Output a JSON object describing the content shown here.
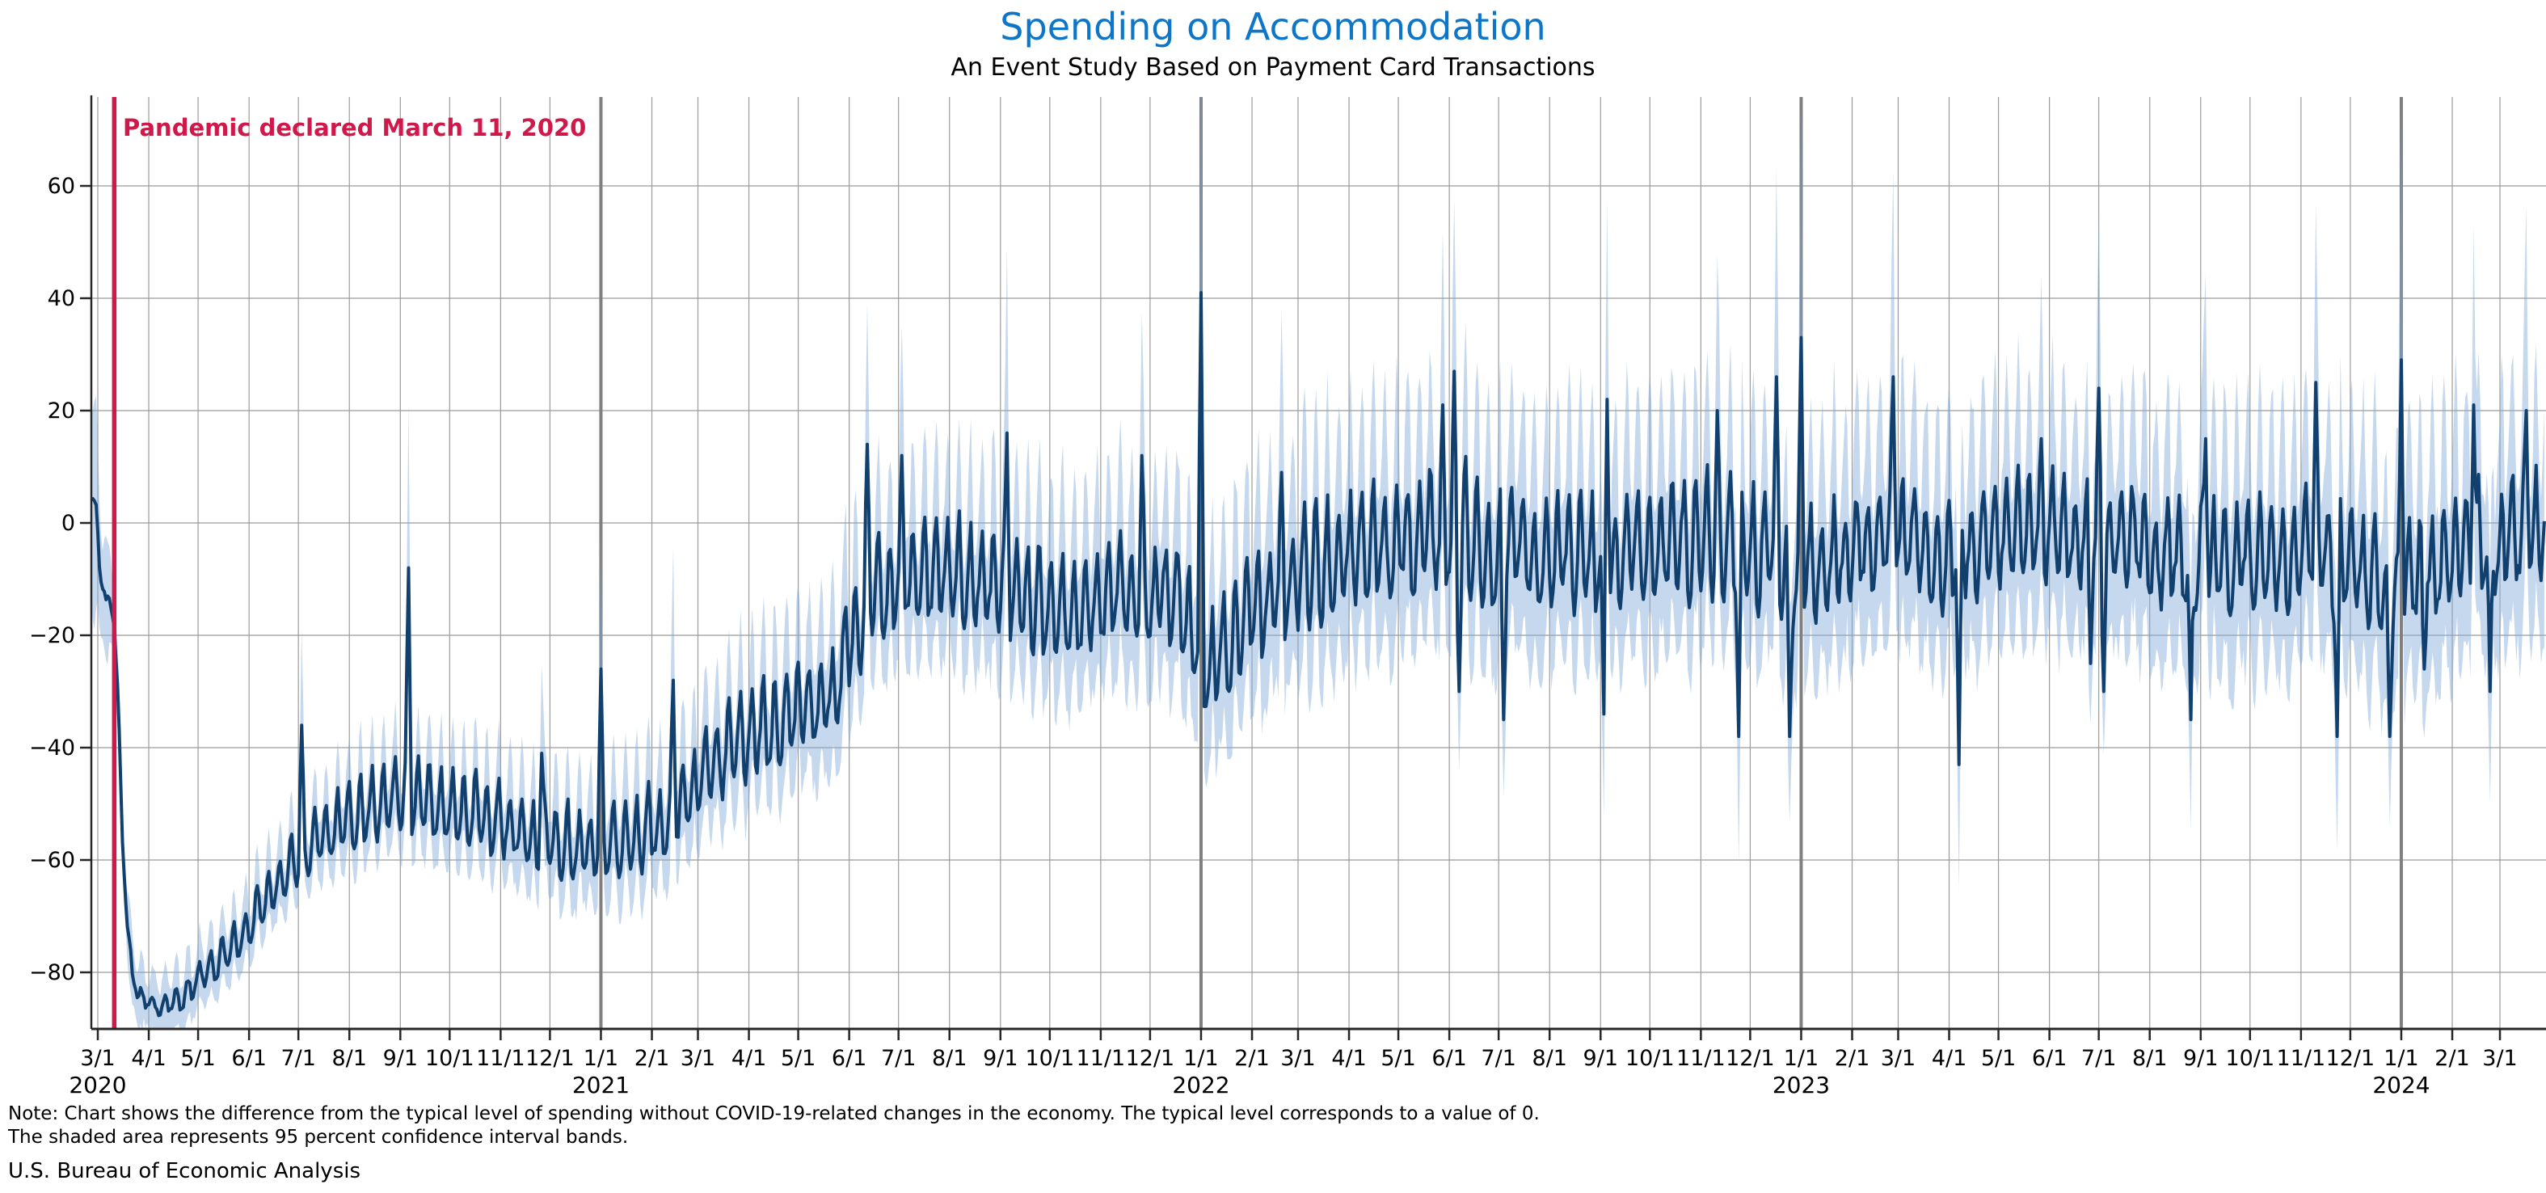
{
  "chart_data": {
    "type": "line",
    "title": "Spending on Accommodation",
    "subtitle": "An Event Study Based on Payment Card Transactions",
    "note_lines": [
      "Note: Chart shows the difference from the typical level of spending without COVID-19-related changes in the economy. The typical level corresponds to a value of 0.",
      "The shaded area represents 95 percent confidence interval bands."
    ],
    "source": "U.S. Bureau of Economic Analysis",
    "annotation": {
      "text": "Pandemic declared March 11, 2020",
      "date": "2020-03-11",
      "color": "#d0194a"
    },
    "colors": {
      "title": "#0d76c9",
      "line": "#11406e",
      "band": "#7fa8d9",
      "band_opacity": 0.45,
      "annotation_line": "#d0194a",
      "grid": "#9b9b9b",
      "year_line": "#7f7f7f",
      "spine": "#262626",
      "text": "#000000"
    },
    "grid": true,
    "legend": "none",
    "ylim": [
      -91,
      76
    ],
    "y_axis": {
      "ticks": [
        {
          "label": "−80",
          "value": -80
        },
        {
          "label": "−60",
          "value": -60
        },
        {
          "label": "−40",
          "value": -40
        },
        {
          "label": "−20",
          "value": -20
        },
        {
          "label": "0",
          "value": 0
        },
        {
          "label": "20",
          "value": 20
        },
        {
          "label": "40",
          "value": 40
        },
        {
          "label": "60",
          "value": 60
        }
      ]
    },
    "x_axis": {
      "start": "2020-02-26",
      "end": "2024-03-28",
      "ticks": [
        {
          "label": "3/1",
          "date": "2020-03-01"
        },
        {
          "label": "4/1",
          "date": "2020-04-01"
        },
        {
          "label": "5/1",
          "date": "2020-05-01"
        },
        {
          "label": "6/1",
          "date": "2020-06-01"
        },
        {
          "label": "7/1",
          "date": "2020-07-01"
        },
        {
          "label": "8/1",
          "date": "2020-08-01"
        },
        {
          "label": "9/1",
          "date": "2020-09-01"
        },
        {
          "label": "10/1",
          "date": "2020-10-01"
        },
        {
          "label": "11/1",
          "date": "2020-11-01"
        },
        {
          "label": "12/1",
          "date": "2020-12-01"
        },
        {
          "label": "1/1",
          "date": "2021-01-01"
        },
        {
          "label": "2/1",
          "date": "2021-02-01"
        },
        {
          "label": "3/1",
          "date": "2021-03-01"
        },
        {
          "label": "4/1",
          "date": "2021-04-01"
        },
        {
          "label": "5/1",
          "date": "2021-05-01"
        },
        {
          "label": "6/1",
          "date": "2021-06-01"
        },
        {
          "label": "7/1",
          "date": "2021-07-01"
        },
        {
          "label": "8/1",
          "date": "2021-08-01"
        },
        {
          "label": "9/1",
          "date": "2021-09-01"
        },
        {
          "label": "10/1",
          "date": "2021-10-01"
        },
        {
          "label": "11/1",
          "date": "2021-11-01"
        },
        {
          "label": "12/1",
          "date": "2021-12-01"
        },
        {
          "label": "1/1",
          "date": "2022-01-01"
        },
        {
          "label": "2/1",
          "date": "2022-02-01"
        },
        {
          "label": "3/1",
          "date": "2022-03-01"
        },
        {
          "label": "4/1",
          "date": "2022-04-01"
        },
        {
          "label": "5/1",
          "date": "2022-05-01"
        },
        {
          "label": "6/1",
          "date": "2022-06-01"
        },
        {
          "label": "7/1",
          "date": "2022-07-01"
        },
        {
          "label": "8/1",
          "date": "2022-08-01"
        },
        {
          "label": "9/1",
          "date": "2022-09-01"
        },
        {
          "label": "10/1",
          "date": "2022-10-01"
        },
        {
          "label": "11/1",
          "date": "2022-11-01"
        },
        {
          "label": "12/1",
          "date": "2022-12-01"
        },
        {
          "label": "1/1",
          "date": "2023-01-01"
        },
        {
          "label": "2/1",
          "date": "2023-02-01"
        },
        {
          "label": "3/1",
          "date": "2023-03-01"
        },
        {
          "label": "4/1",
          "date": "2023-04-01"
        },
        {
          "label": "5/1",
          "date": "2023-05-01"
        },
        {
          "label": "6/1",
          "date": "2023-06-01"
        },
        {
          "label": "7/1",
          "date": "2023-07-01"
        },
        {
          "label": "8/1",
          "date": "2023-08-01"
        },
        {
          "label": "9/1",
          "date": "2023-09-01"
        },
        {
          "label": "10/1",
          "date": "2023-10-01"
        },
        {
          "label": "11/1",
          "date": "2023-11-01"
        },
        {
          "label": "12/1",
          "date": "2023-12-01"
        },
        {
          "label": "1/1",
          "date": "2024-01-01"
        },
        {
          "label": "2/1",
          "date": "2024-02-01"
        },
        {
          "label": "3/1",
          "date": "2024-03-01"
        }
      ],
      "year_labels": [
        {
          "label": "2020",
          "date": "2020-03-01"
        },
        {
          "label": "2021",
          "date": "2021-01-01"
        },
        {
          "label": "2022",
          "date": "2022-01-01"
        },
        {
          "label": "2023",
          "date": "2023-01-01"
        },
        {
          "label": "2024",
          "date": "2024-01-01"
        }
      ],
      "year_lines": [
        "2021-01-01",
        "2022-01-01",
        "2023-01-01",
        "2024-01-01"
      ]
    },
    "series_name": "Difference from typical level of spending",
    "band_name": "95 percent confidence interval bands",
    "seed": 20200311,
    "weekly_pattern": [
      0.15,
      -0.85,
      -1.0,
      -0.7,
      -0.1,
      0.7,
      1.0
    ],
    "band_width_pattern": [
      1,
      -0.2,
      -0.6,
      -0.5,
      0,
      0.7,
      1
    ],
    "trend_anchors": [
      [
        "2020-02-26",
        6
      ],
      [
        "2020-02-29",
        2
      ],
      [
        "2020-03-03",
        -9
      ],
      [
        "2020-03-06",
        -15
      ],
      [
        "2020-03-09",
        -14
      ],
      [
        "2020-03-11",
        -18
      ],
      [
        "2020-03-13",
        -30
      ],
      [
        "2020-03-16",
        -55
      ],
      [
        "2020-03-19",
        -72
      ],
      [
        "2020-03-22",
        -80
      ],
      [
        "2020-03-26",
        -84
      ],
      [
        "2020-04-02",
        -85.5
      ],
      [
        "2020-04-12",
        -86
      ],
      [
        "2020-04-22",
        -84
      ],
      [
        "2020-05-02",
        -81
      ],
      [
        "2020-05-12",
        -78
      ],
      [
        "2020-05-22",
        -75
      ],
      [
        "2020-06-01",
        -70.5
      ],
      [
        "2020-06-11",
        -66
      ],
      [
        "2020-06-21",
        -62.5
      ],
      [
        "2020-07-01",
        -59
      ],
      [
        "2020-07-11",
        -56
      ],
      [
        "2020-07-21",
        -54
      ],
      [
        "2020-08-01",
        -51.5
      ],
      [
        "2020-08-15",
        -50
      ],
      [
        "2020-09-01",
        -48
      ],
      [
        "2020-09-15",
        -48.5
      ],
      [
        "2020-10-01",
        -50
      ],
      [
        "2020-10-15",
        -51
      ],
      [
        "2020-11-01",
        -53
      ],
      [
        "2020-11-15",
        -54.5
      ],
      [
        "2020-12-01",
        -56
      ],
      [
        "2020-12-15",
        -57
      ],
      [
        "2020-12-28",
        -57
      ],
      [
        "2021-01-05",
        -56.5
      ],
      [
        "2021-01-20",
        -55.5
      ],
      [
        "2021-02-01",
        -53.5
      ],
      [
        "2021-02-14",
        -51
      ],
      [
        "2021-02-25",
        -48
      ],
      [
        "2021-03-10",
        -43
      ],
      [
        "2021-03-25",
        -38.5
      ],
      [
        "2021-04-10",
        -35
      ],
      [
        "2021-04-25",
        -33
      ],
      [
        "2021-05-10",
        -31.5
      ],
      [
        "2021-05-25",
        -29.5
      ],
      [
        "2021-06-03",
        -21
      ],
      [
        "2021-06-12",
        -13
      ],
      [
        "2021-06-25",
        -11
      ],
      [
        "2021-07-10",
        -8
      ],
      [
        "2021-07-25",
        -9
      ],
      [
        "2021-08-10",
        -8
      ],
      [
        "2021-08-25",
        -10
      ],
      [
        "2021-09-10",
        -12
      ],
      [
        "2021-09-25",
        -13.5
      ],
      [
        "2021-10-10",
        -14.5
      ],
      [
        "2021-10-25",
        -14
      ],
      [
        "2021-11-10",
        -12.5
      ],
      [
        "2021-11-25",
        -13
      ],
      [
        "2021-12-10",
        -12
      ],
      [
        "2021-12-20",
        -14
      ],
      [
        "2021-12-29",
        -23
      ],
      [
        "2022-01-08",
        -23
      ],
      [
        "2022-01-20",
        -21
      ],
      [
        "2022-02-01",
        -16
      ],
      [
        "2022-02-15",
        -12
      ],
      [
        "2022-03-01",
        -9
      ],
      [
        "2022-03-15",
        -6.5
      ],
      [
        "2022-04-01",
        -4
      ],
      [
        "2022-04-15",
        -2.5
      ],
      [
        "2022-05-01",
        -3
      ],
      [
        "2022-05-15",
        -2
      ],
      [
        "2022-06-01",
        0
      ],
      [
        "2022-06-15",
        -2.5
      ],
      [
        "2022-07-01",
        -4
      ],
      [
        "2022-07-15",
        -3
      ],
      [
        "2022-08-01",
        -4
      ],
      [
        "2022-08-15",
        -5
      ],
      [
        "2022-09-01",
        -5.5
      ],
      [
        "2022-09-15",
        -4.5
      ],
      [
        "2022-10-01",
        -2.5
      ],
      [
        "2022-10-15",
        -2
      ],
      [
        "2022-11-01",
        -2
      ],
      [
        "2022-11-15",
        -3
      ],
      [
        "2022-12-01",
        -3.5
      ],
      [
        "2022-12-15",
        -3
      ],
      [
        "2022-12-27",
        -9
      ],
      [
        "2023-01-08",
        -5.5
      ],
      [
        "2023-01-20",
        -5
      ],
      [
        "2023-02-01",
        -4
      ],
      [
        "2023-02-15",
        -2
      ],
      [
        "2023-03-01",
        -2.5
      ],
      [
        "2023-03-15",
        -3
      ],
      [
        "2023-04-01",
        -5
      ],
      [
        "2023-04-15",
        -4
      ],
      [
        "2023-05-01",
        -1.5
      ],
      [
        "2023-05-15",
        -0.5
      ],
      [
        "2023-06-01",
        -0.5
      ],
      [
        "2023-06-15",
        -1.5
      ],
      [
        "2023-07-01",
        -1
      ],
      [
        "2023-07-15",
        -2.5
      ],
      [
        "2023-08-01",
        -3.5
      ],
      [
        "2023-08-15",
        -5
      ],
      [
        "2023-08-27",
        -7
      ],
      [
        "2023-09-10",
        -3.5
      ],
      [
        "2023-09-25",
        -5
      ],
      [
        "2023-10-10",
        -4.5
      ],
      [
        "2023-10-25",
        -5.5
      ],
      [
        "2023-11-08",
        -3.5
      ],
      [
        "2023-11-20",
        -6
      ],
      [
        "2023-12-01",
        -6
      ],
      [
        "2023-12-15",
        -8
      ],
      [
        "2023-12-26",
        -13
      ],
      [
        "2024-01-08",
        -9
      ],
      [
        "2024-01-20",
        -7.5
      ],
      [
        "2024-02-01",
        -4.5
      ],
      [
        "2024-02-14",
        -1.5
      ],
      [
        "2024-02-25",
        -4
      ],
      [
        "2024-03-08",
        -2
      ],
      [
        "2024-03-18",
        -1
      ],
      [
        "2024-03-28",
        2
      ]
    ],
    "amplitude_anchors": [
      [
        "2020-02-26",
        2
      ],
      [
        "2020-03-12",
        1.5
      ],
      [
        "2020-04-01",
        1.3
      ],
      [
        "2020-05-01",
        2.2
      ],
      [
        "2020-06-01",
        3.2
      ],
      [
        "2020-07-01",
        4.5
      ],
      [
        "2020-08-01",
        6
      ],
      [
        "2020-10-01",
        6.5
      ],
      [
        "2020-12-01",
        5.5
      ],
      [
        "2021-02-01",
        6
      ],
      [
        "2021-04-01",
        7
      ],
      [
        "2021-06-01",
        7.5
      ],
      [
        "2021-08-01",
        8
      ],
      [
        "2021-10-01",
        8.5
      ],
      [
        "2021-12-01",
        7.5
      ],
      [
        "2022-01-15",
        8.5
      ],
      [
        "2022-03-01",
        9
      ],
      [
        "2022-06-01",
        9.5
      ],
      [
        "2022-09-01",
        9
      ],
      [
        "2022-12-01",
        9
      ],
      [
        "2023-03-01",
        8.5
      ],
      [
        "2023-06-01",
        8
      ],
      [
        "2023-09-01",
        8.5
      ],
      [
        "2023-12-01",
        8.5
      ],
      [
        "2024-03-28",
        8
      ]
    ],
    "ci_anchors": [
      [
        "2020-02-26",
        18
      ],
      [
        "2020-03-05",
        9
      ],
      [
        "2020-03-15",
        6
      ],
      [
        "2020-04-01",
        4.5
      ],
      [
        "2020-06-01",
        5
      ],
      [
        "2020-08-01",
        6.5
      ],
      [
        "2020-10-01",
        7.5
      ],
      [
        "2020-12-01",
        8
      ],
      [
        "2021-02-01",
        9
      ],
      [
        "2021-04-01",
        10
      ],
      [
        "2021-06-01",
        12
      ],
      [
        "2021-09-01",
        13
      ],
      [
        "2021-12-01",
        13.5
      ],
      [
        "2022-02-01",
        15
      ],
      [
        "2022-06-01",
        16
      ],
      [
        "2022-10-01",
        16
      ],
      [
        "2023-02-01",
        16.5
      ],
      [
        "2023-06-01",
        16
      ],
      [
        "2023-10-01",
        17
      ],
      [
        "2024-01-01",
        17.5
      ],
      [
        "2024-03-28",
        17
      ]
    ],
    "noise_anchors": [
      [
        "2020-02-26",
        1.0
      ],
      [
        "2020-04-01",
        0.8
      ],
      [
        "2020-08-01",
        1.3
      ],
      [
        "2021-01-01",
        1.8
      ],
      [
        "2021-06-01",
        2.2
      ],
      [
        "2022-01-01",
        2.8
      ],
      [
        "2023-01-01",
        3.0
      ],
      [
        "2024-03-28",
        3.0
      ]
    ],
    "events": [
      [
        "2020-07-03",
        -36
      ],
      [
        "2020-09-06",
        -8
      ],
      [
        "2020-11-26",
        -41
      ],
      [
        "2021-01-01",
        -26
      ],
      [
        "2021-02-14",
        -28
      ],
      [
        "2021-05-30",
        -15
      ],
      [
        "2021-06-12",
        14
      ],
      [
        "2021-07-03",
        12
      ],
      [
        "2021-09-05",
        16
      ],
      [
        "2021-11-26",
        12
      ],
      [
        "2022-01-01",
        41
      ],
      [
        "2022-02-19",
        9
      ],
      [
        "2022-05-28",
        21
      ],
      [
        "2022-06-04",
        27
      ],
      [
        "2022-06-07",
        -30
      ],
      [
        "2022-07-04",
        -35
      ],
      [
        "2022-09-03",
        -34
      ],
      [
        "2022-09-05",
        22
      ],
      [
        "2022-11-11",
        20
      ],
      [
        "2022-11-24",
        -38
      ],
      [
        "2022-12-17",
        26
      ],
      [
        "2022-12-25",
        -38
      ],
      [
        "2023-01-01",
        33
      ],
      [
        "2023-02-26",
        26
      ],
      [
        "2023-04-07",
        -43
      ],
      [
        "2023-05-27",
        15
      ],
      [
        "2023-06-26",
        -25
      ],
      [
        "2023-07-01",
        24
      ],
      [
        "2023-07-04",
        -30
      ],
      [
        "2023-08-26",
        -35
      ],
      [
        "2023-09-04",
        15
      ],
      [
        "2023-11-10",
        25
      ],
      [
        "2023-11-23",
        -38
      ],
      [
        "2023-12-25",
        -38
      ],
      [
        "2024-01-01",
        29
      ],
      [
        "2024-01-15",
        -26
      ],
      [
        "2024-02-14",
        21
      ],
      [
        "2024-02-24",
        -30
      ],
      [
        "2024-03-17",
        20
      ]
    ]
  }
}
